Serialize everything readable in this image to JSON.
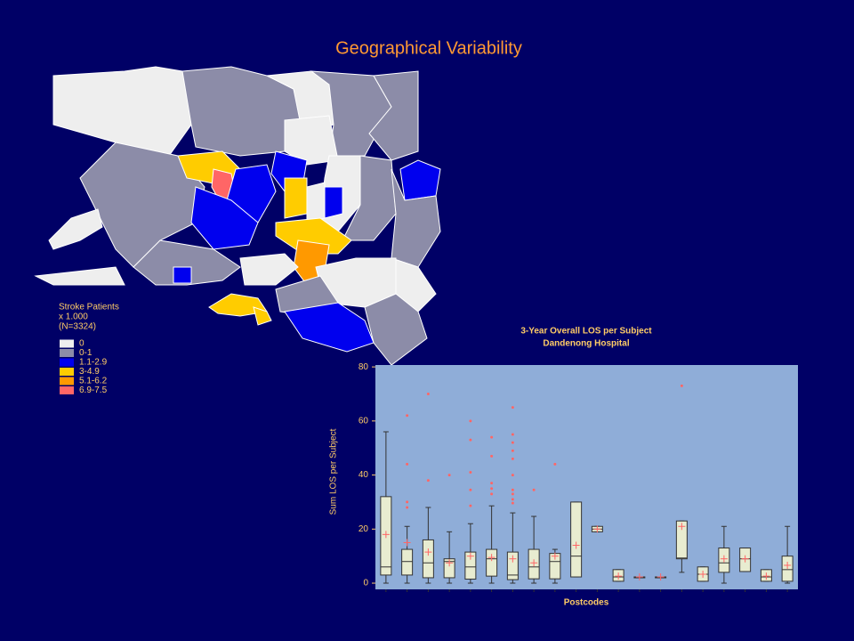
{
  "header": {
    "title": "Geographical Variability"
  },
  "map_legend": {
    "title_lines": [
      "Stroke Patients",
      "x 1.000",
      "(N=3324)"
    ],
    "items": [
      {
        "label": "0",
        "color": "#eeeeee"
      },
      {
        "label": "0-1",
        "color": "#8c8ca8"
      },
      {
        "label": "1.1-2.9",
        "color": "#0000ee"
      },
      {
        "label": "3-4.9",
        "color": "#ffcc00"
      },
      {
        "label": "5.1-6.2",
        "color": "#ff9900"
      },
      {
        "label": "6.9-7.5",
        "color": "#ff6666"
      }
    ]
  },
  "chart_data": {
    "type": "box",
    "title": "3-Year Overall LOS per Subject",
    "subtitle": "Dandenong Hospital",
    "xlabel": "Postcodes",
    "ylabel": "Sum LOS per Subject",
    "categories": [
      null,
      null,
      null,
      null,
      null,
      null,
      null,
      null,
      null,
      null,
      null,
      null,
      null,
      null,
      null,
      null,
      null,
      null,
      null,
      null
    ],
    "ylim": [
      -2.3,
      80.7
    ],
    "yticks": [
      0,
      20,
      40,
      60,
      80
    ],
    "box_color": "#e8ecd0",
    "mark_color": "#ff6666",
    "boxes": [
      {
        "min": 0,
        "q1": 3,
        "median": 6,
        "q3": 32,
        "max": 56,
        "mean": 18,
        "outliers": []
      },
      {
        "min": 0,
        "q1": 3,
        "median": 8,
        "q3": 12.5,
        "max": 21,
        "mean": 15,
        "outliers": [
          62,
          44,
          30,
          28
        ]
      },
      {
        "min": 0,
        "q1": 2,
        "median": 7.5,
        "q3": 16,
        "max": 28,
        "mean": 11.5,
        "outliers": [
          70,
          38
        ]
      },
      {
        "min": 0,
        "q1": 2,
        "median": 8,
        "q3": 9,
        "max": 19,
        "mean": 7.5,
        "outliers": [
          40
        ]
      },
      {
        "min": 0,
        "q1": 1.5,
        "median": 6,
        "q3": 11.5,
        "max": 22,
        "mean": 10,
        "outliers": [
          60,
          53,
          41,
          34.5,
          28.6
        ]
      },
      {
        "min": 0,
        "q1": 2.6,
        "median": 9,
        "q3": 12.5,
        "max": 28.6,
        "mean": 9.5,
        "outliers": [
          54,
          47,
          37,
          35,
          33
        ]
      },
      {
        "min": 0,
        "q1": 1.3,
        "median": 3,
        "q3": 11.5,
        "max": 26,
        "mean": 9,
        "outliers": [
          65,
          55,
          52,
          49,
          46,
          40,
          34.5,
          33,
          31,
          29.6
        ]
      },
      {
        "min": 0,
        "q1": 1.6,
        "median": 6,
        "q3": 12.5,
        "max": 24.7,
        "mean": 7.5,
        "outliers": [
          34.5
        ]
      },
      {
        "min": 0,
        "q1": 1.6,
        "median": 8,
        "q3": 11,
        "max": 12.5,
        "mean": 10,
        "outliers": [
          44
        ]
      },
      {
        "min": 2.3,
        "q1": 2.3,
        "median": 10,
        "q3": 30,
        "max": 30,
        "mean": 14,
        "outliers": []
      },
      {
        "min": 19,
        "q1": 19,
        "median": 20,
        "q3": 21,
        "max": 21,
        "mean": 20,
        "outliers": []
      },
      {
        "min": 0.7,
        "q1": 0.7,
        "median": 2.3,
        "q3": 5,
        "max": 5,
        "mean": 2.6,
        "outliers": []
      },
      {
        "min": 2.3,
        "q1": 2.3,
        "median": 2.3,
        "q3": 2.3,
        "max": 2.3,
        "mean": 2.3,
        "outliers": []
      },
      {
        "min": 2.3,
        "q1": 2.3,
        "median": 2.3,
        "q3": 2.3,
        "max": 2.3,
        "mean": 2.3,
        "outliers": []
      },
      {
        "min": 4,
        "q1": 9,
        "median": 9.3,
        "q3": 23,
        "max": 23,
        "mean": 21,
        "outliers": [
          73
        ]
      },
      {
        "min": 0.7,
        "q1": 0.7,
        "median": 3.3,
        "q3": 6,
        "max": 6,
        "mean": 3.3,
        "outliers": []
      },
      {
        "min": 0,
        "q1": 4,
        "median": 7.5,
        "q3": 13,
        "max": 21,
        "mean": 9,
        "outliers": []
      },
      {
        "min": 4.3,
        "q1": 4.3,
        "median": 9,
        "q3": 13,
        "max": 13,
        "mean": 9,
        "outliers": []
      },
      {
        "min": 0.7,
        "q1": 0.7,
        "median": 2.3,
        "q3": 5,
        "max": 5,
        "mean": 2.6,
        "outliers": []
      },
      {
        "min": 0,
        "q1": 0.7,
        "median": 5,
        "q3": 10,
        "max": 21,
        "mean": 6.6,
        "outliers": []
      }
    ]
  }
}
